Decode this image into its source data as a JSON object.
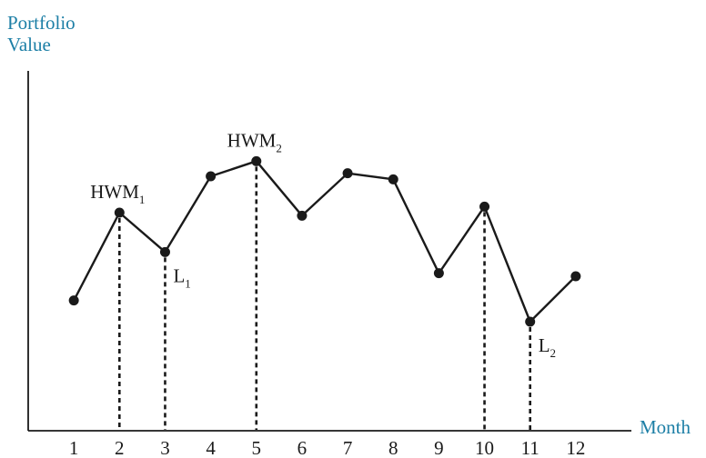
{
  "chart_data": {
    "type": "line",
    "ylabel_line1": "Portfolio",
    "ylabel_line2": "Value",
    "xlabel": "Month",
    "categories": [
      "1",
      "2",
      "3",
      "4",
      "5",
      "6",
      "7",
      "8",
      "9",
      "10",
      "11",
      "12"
    ],
    "x": [
      1,
      2,
      3,
      4,
      5,
      6,
      7,
      8,
      9,
      10,
      11,
      12
    ],
    "values": [
      4.3,
      7.2,
      5.9,
      8.4,
      8.9,
      7.1,
      8.5,
      8.3,
      5.2,
      7.4,
      3.6,
      5.1
    ],
    "ylim": [
      0,
      12
    ],
    "xlim": [
      0,
      13
    ],
    "grid": false,
    "annotations": [
      {
        "base": "HWM",
        "sub": "1",
        "x": 2,
        "marker": "high-water-mark"
      },
      {
        "base": "L",
        "sub": "1",
        "x": 3,
        "marker": "low"
      },
      {
        "base": "HWM",
        "sub": "2",
        "x": 5,
        "marker": "high-water-mark"
      },
      {
        "base": "L",
        "sub": "2",
        "x": 11,
        "marker": "low"
      }
    ],
    "droplines_at_x": [
      2,
      3,
      5,
      10,
      11
    ]
  }
}
